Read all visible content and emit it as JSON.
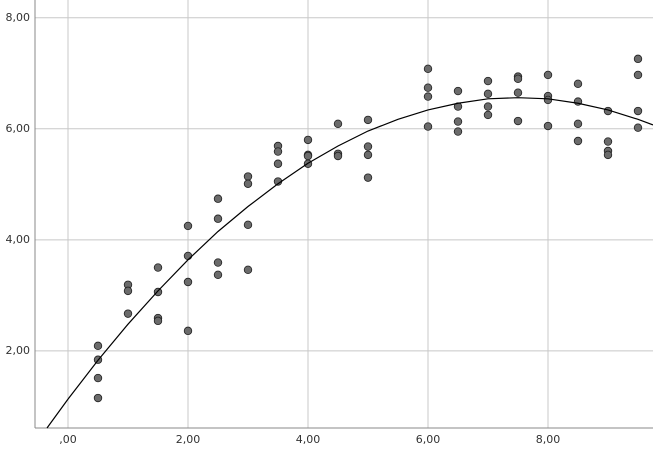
{
  "chart_data": {
    "type": "scatter",
    "xlim": [
      -0.55,
      9.75
    ],
    "ylim": [
      0.61,
      8.32
    ],
    "xticks": [
      {
        "value": 0,
        "label": ",00"
      },
      {
        "value": 2,
        "label": "2,00"
      },
      {
        "value": 4,
        "label": "4,00"
      },
      {
        "value": 6,
        "label": "6,00"
      },
      {
        "value": 8,
        "label": "8,00"
      }
    ],
    "yticks": [
      {
        "value": 2,
        "label": "2,00"
      },
      {
        "value": 4,
        "label": "4,00"
      },
      {
        "value": 6,
        "label": "6,00"
      },
      {
        "value": 8,
        "label": "8,00"
      }
    ],
    "grid": true,
    "series": [
      {
        "color": "#6b6b6b",
        "x": [
          0.5,
          0.5,
          0.5,
          0.5,
          1,
          1,
          1,
          1.5,
          1.5,
          1.5,
          1.5,
          2,
          2,
          2,
          2,
          2.5,
          2.5,
          2.5,
          2.5,
          3,
          3,
          3,
          3,
          3.5,
          3.5,
          3.5,
          3.5,
          4,
          4,
          4,
          4,
          4.5,
          4.5,
          4.5,
          5,
          5,
          5,
          5,
          6,
          6,
          6,
          6,
          6.5,
          6.5,
          6.5,
          6.5,
          7,
          7,
          7,
          7,
          7.5,
          7.5,
          7.5,
          7.5,
          8,
          8,
          8,
          8,
          8.5,
          8.5,
          8.5,
          8.5,
          9,
          9,
          9,
          9,
          9.5,
          9.5,
          9.5,
          9.5
        ],
        "values": [
          2.09,
          1.84,
          1.51,
          1.15,
          3.19,
          3.08,
          2.67,
          3.5,
          3.06,
          2.59,
          2.54,
          4.25,
          3.71,
          3.24,
          2.36,
          4.74,
          4.38,
          3.59,
          3.37,
          5.14,
          5.01,
          4.27,
          3.46,
          5.69,
          5.59,
          5.37,
          5.05,
          5.8,
          5.53,
          5.51,
          5.37,
          6.09,
          5.55,
          5.51,
          6.16,
          5.68,
          5.53,
          5.12,
          7.08,
          6.74,
          6.58,
          6.04,
          6.68,
          6.4,
          6.13,
          5.95,
          6.86,
          6.63,
          6.4,
          6.25,
          6.94,
          6.9,
          6.65,
          6.14,
          6.97,
          6.59,
          6.52,
          6.05,
          6.81,
          6.49,
          6.09,
          5.78,
          6.32,
          5.77,
          5.6,
          5.53,
          7.26,
          6.97,
          6.32,
          6.02
        ]
      },
      {
        "color": "#000000",
        "line": true,
        "x": [
          -0.35,
          0,
          0.5,
          1,
          1.5,
          2,
          2.5,
          3,
          3.5,
          4,
          4.5,
          5,
          5.5,
          6,
          6.5,
          7,
          7.5,
          8,
          8.5,
          9,
          9.5,
          9.75
        ],
        "values": [
          0.61,
          1.13,
          1.83,
          2.48,
          3.08,
          3.64,
          4.15,
          4.6,
          5.01,
          5.38,
          5.69,
          5.96,
          6.17,
          6.34,
          6.46,
          6.54,
          6.56,
          6.54,
          6.46,
          6.34,
          6.17,
          6.07
        ]
      }
    ]
  }
}
